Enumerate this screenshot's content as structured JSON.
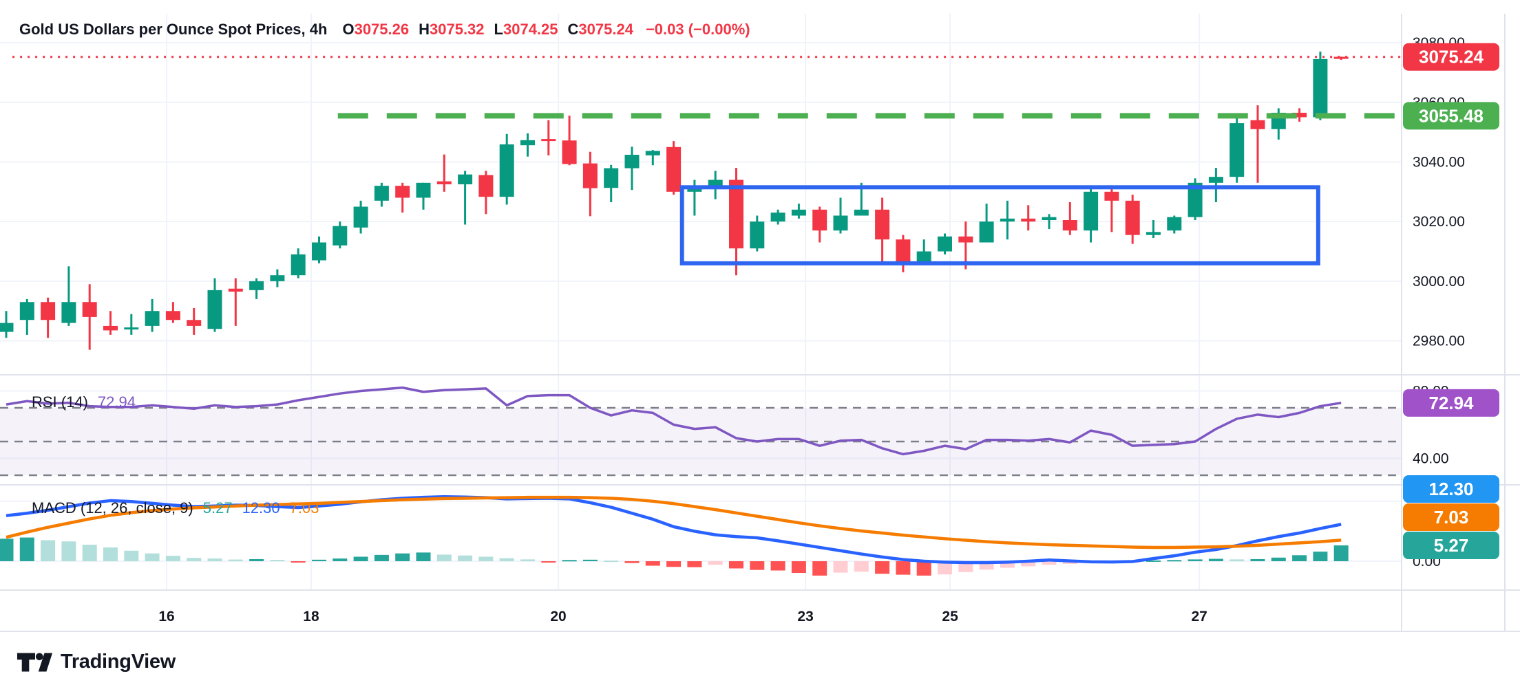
{
  "header": {
    "title": "Gold US Dollars per Ounce Spot Prices, 4h",
    "o_label": "O",
    "open": "3075.26",
    "h_label": "H",
    "high": "3075.32",
    "l_label": "L",
    "low": "3074.25",
    "c_label": "C",
    "close": "3075.24",
    "change": "−0.03 (−0.00%)"
  },
  "rsi_label": {
    "name": "RSI (14)",
    "value": "72.94"
  },
  "macd_label": {
    "name": "MACD (12, 26, close, 9)",
    "hist_value": "5.27",
    "macd_value": "12.30",
    "signal_value": "7.03"
  },
  "logo": {
    "text": "TradingView"
  },
  "colors": {
    "up": "#089981",
    "down": "#F23645",
    "hist_up": "#26A69A",
    "hist_up_weak": "#B2DFDB",
    "hist_down": "#FF5252",
    "hist_down_weak": "#FFCDD2",
    "macd_line": "#2962FF",
    "signal_line": "#F57C00",
    "rsi_line": "#7E57C2",
    "rsi_band_fill": "rgba(126,87,194,0.08)",
    "grid": "#F0F3FA",
    "separator": "#E0E3EB",
    "dash_gray": "#70737E",
    "text": "#131722",
    "tag_last": "#F23645",
    "tag_resistance": "#4CAF50",
    "tag_rsi": "#A052C8",
    "tag_macd": "#2196F3",
    "tag_signal": "#F57C00",
    "tag_hist": "#26A69A",
    "box_blue": "#2E66F0",
    "resistance_green": "#4CAF50"
  },
  "chart_data": {
    "type": "candlestick",
    "timeframe": "4h",
    "panels": [
      {
        "id": "price",
        "ylim": [
          2968.6,
          3089.7
        ],
        "yticks": [
          3080,
          3060,
          3040,
          3020,
          3000,
          2980
        ]
      },
      {
        "id": "rsi",
        "ylim": [
          24.3,
          89.6
        ],
        "yticks": [
          80,
          40
        ],
        "guides": [
          70,
          50,
          30
        ],
        "last": 72.94
      },
      {
        "id": "macd",
        "ylim": [
          -9.63,
          25.46
        ],
        "yticks": [
          0
        ],
        "guides": [
          20
        ],
        "last": {
          "macd": 12.3,
          "signal": 7.03,
          "hist": 5.27
        }
      }
    ],
    "x_labels": [
      {
        "text": "16",
        "index": 7.69
      },
      {
        "text": "18",
        "index": 14.62
      },
      {
        "text": "20",
        "index": 26.47
      },
      {
        "text": "23",
        "index": 38.32
      },
      {
        "text": "25",
        "index": 45.25
      },
      {
        "text": "27",
        "index": 57.2
      }
    ],
    "candles": [
      [
        2983,
        2990,
        2981,
        2986
      ],
      [
        2987,
        2994,
        2982,
        2993
      ],
      [
        2993,
        2994.5,
        2981,
        2987
      ],
      [
        2986,
        3005,
        2985,
        2993
      ],
      [
        2993,
        2999,
        2977,
        2988
      ],
      [
        2985,
        2990,
        2982,
        2983.5
      ],
      [
        2984,
        2989,
        2982,
        2984.5
      ],
      [
        2985,
        2994,
        2983,
        2990
      ],
      [
        2990,
        2993,
        2986,
        2987
      ],
      [
        2987,
        2991,
        2982,
        2985
      ],
      [
        2984,
        3001,
        2983,
        2997
      ],
      [
        2997.5,
        3001,
        2985,
        2996.5
      ],
      [
        2997,
        3001,
        2994,
        3000
      ],
      [
        3000,
        3004,
        2998,
        3002
      ],
      [
        3002,
        3011,
        3001,
        3009
      ],
      [
        3007,
        3015,
        3006,
        3013
      ],
      [
        3012,
        3020,
        3011,
        3018.5
      ],
      [
        3018,
        3027,
        3016,
        3025
      ],
      [
        3027,
        3033,
        3025,
        3032
      ],
      [
        3032,
        3033,
        3023,
        3028
      ],
      [
        3028,
        3033,
        3024,
        3033
      ],
      [
        3033.5,
        3042.5,
        3030,
        3032.5
      ],
      [
        3032.5,
        3037,
        3019,
        3035.8
      ],
      [
        3035.6,
        3037,
        3022.5,
        3028.3
      ],
      [
        3028.3,
        3049.4,
        3025.7,
        3045.9
      ],
      [
        3045.6,
        3049.6,
        3041.8,
        3047.3
      ],
      [
        3047.7,
        3054,
        3042.2,
        3047
      ],
      [
        3047.2,
        3055.5,
        3038.9,
        3039.3
      ],
      [
        3039.5,
        3043.4,
        3021.8,
        3031.2
      ],
      [
        3031.3,
        3039,
        3026.5,
        3037.9
      ],
      [
        3037.9,
        3045.1,
        3030.6,
        3042.4
      ],
      [
        3042.2,
        3044,
        3038.9,
        3043.7
      ],
      [
        3045,
        3047,
        3029,
        3030
      ],
      [
        3030,
        3034,
        3022,
        3031.5
      ],
      [
        3031,
        3037,
        3027.5,
        3034
      ],
      [
        3034,
        3038,
        3002,
        3011
      ],
      [
        3011,
        3022,
        3010,
        3020
      ],
      [
        3020,
        3024,
        3019,
        3023
      ],
      [
        3022,
        3026,
        3021,
        3024
      ],
      [
        3024,
        3025,
        3013,
        3017
      ],
      [
        3017,
        3028,
        3016,
        3022
      ],
      [
        3022,
        3033,
        3022,
        3024
      ],
      [
        3024,
        3028,
        3006,
        3014
      ],
      [
        3014,
        3015.5,
        3003,
        3006
      ],
      [
        3006,
        3014,
        3005.5,
        3010
      ],
      [
        3010,
        3016,
        3009,
        3015
      ],
      [
        3015,
        3020,
        3004,
        3013
      ],
      [
        3013,
        3026,
        3013,
        3020
      ],
      [
        3020,
        3027,
        3014,
        3021
      ],
      [
        3021,
        3025.5,
        3017,
        3020
      ],
      [
        3020.5,
        3022.5,
        3017.5,
        3021.5
      ],
      [
        3020.5,
        3026.5,
        3015.5,
        3017
      ],
      [
        3017,
        3031,
        3013,
        3030
      ],
      [
        3030,
        3031.5,
        3016.5,
        3027
      ],
      [
        3027,
        3029,
        3012.5,
        3015.5
      ],
      [
        3015.5,
        3020.5,
        3014.5,
        3016.5
      ],
      [
        3017,
        3022,
        3016,
        3021.5
      ],
      [
        3021.5,
        3034.5,
        3020.5,
        3033
      ],
      [
        3033,
        3038,
        3026.5,
        3035
      ],
      [
        3035,
        3055,
        3033,
        3053
      ],
      [
        3054,
        3059,
        3033,
        3051
      ],
      [
        3051,
        3058,
        3047.5,
        3056.5
      ],
      [
        3056.5,
        3058,
        3053.5,
        3055
      ],
      [
        3055,
        3077,
        3054,
        3074.5
      ],
      [
        3075.26,
        3075.32,
        3074.25,
        3075.24
      ]
    ],
    "rsi": [
      72,
      74,
      72.5,
      73,
      71,
      70.5,
      70.5,
      71.5,
      70.5,
      69.5,
      71.5,
      70.5,
      71,
      72,
      74.5,
      76.5,
      78.5,
      80,
      81,
      82,
      79.5,
      80.5,
      81,
      81.5,
      71.5,
      77,
      77.5,
      77.5,
      70,
      65.5,
      68.5,
      67,
      60,
      57.5,
      58.5,
      52,
      50,
      51.5,
      51.5,
      47.5,
      50.5,
      51,
      46,
      42.5,
      44.5,
      47.5,
      45.5,
      51,
      51,
      50.5,
      51.5,
      49.5,
      56.5,
      54,
      47.5,
      48,
      48.5,
      50,
      57.5,
      63.5,
      66,
      64.5,
      67,
      71,
      72.94
    ],
    "macd": {
      "macd": [
        15.2,
        16.0,
        17.0,
        18.2,
        19.4,
        20.2,
        19.9,
        19.3,
        18.7,
        18.2,
        18.4,
        18.7,
        18.6,
        18.2,
        17.9,
        18.4,
        19.0,
        19.8,
        20.5,
        21.0,
        21.3,
        21.5,
        21.4,
        21.2,
        20.8,
        20.9,
        21.0,
        20.8,
        19.5,
        18.0,
        16.0,
        14.0,
        11.5,
        10.0,
        8.8,
        8.2,
        7.8,
        6.8,
        5.7,
        4.6,
        3.5,
        2.4,
        1.4,
        0.55,
        0.0,
        -0.3,
        -0.45,
        -0.45,
        -0.3,
        0.0,
        0.4,
        0.1,
        -0.2,
        -0.25,
        -0.1,
        0.9,
        1.8,
        3.0,
        3.9,
        5.2,
        6.8,
        8.2,
        9.4,
        10.9,
        12.3
      ],
      "signal": [
        8.0,
        9.7,
        11.3,
        12.7,
        14.1,
        15.3,
        16.2,
        16.9,
        17.4,
        17.8,
        18.1,
        18.4,
        18.7,
        18.9,
        19.1,
        19.3,
        19.6,
        19.9,
        20.2,
        20.5,
        20.7,
        20.9,
        21.0,
        21.1,
        21.2,
        21.3,
        21.3,
        21.3,
        21.2,
        21.0,
        20.6,
        20.0,
        19.2,
        18.2,
        17.2,
        16.1,
        15.0,
        13.9,
        12.8,
        11.8,
        10.9,
        10.1,
        9.4,
        8.7,
        8.1,
        7.5,
        7.0,
        6.5,
        6.1,
        5.8,
        5.5,
        5.3,
        5.1,
        4.9,
        4.7,
        4.6,
        4.6,
        4.7,
        4.8,
        5.0,
        5.3,
        5.7,
        6.1,
        6.5,
        7.03
      ],
      "hist": [
        7.5,
        7.9,
        7.0,
        6.6,
        5.5,
        4.6,
        3.5,
        2.6,
        1.8,
        1.1,
        0.9,
        0.55,
        0.7,
        0.45,
        -0.4,
        0.5,
        0.9,
        1.5,
        2.1,
        2.6,
        2.9,
        2.2,
        1.9,
        1.5,
        1.0,
        0.6,
        -0.3,
        0.4,
        0.5,
        0.2,
        -0.6,
        -1.5,
        -1.9,
        -2.0,
        -1.2,
        -2.4,
        -2.9,
        -3.1,
        -3.9,
        -4.8,
        -3.8,
        -3.5,
        -4.2,
        -4.5,
        -4.8,
        -4.4,
        -3.6,
        -2.8,
        -2.2,
        -1.7,
        -1.2,
        -0.9,
        -0.6,
        -0.45,
        -0.35,
        0.25,
        0.4,
        0.6,
        0.8,
        0.6,
        0.7,
        1.2,
        2.0,
        3.2,
        5.27
      ]
    },
    "overlays": {
      "last_price_line": {
        "value": 3075.24,
        "style": "dotted",
        "from_index": 0.3
      },
      "resistance_line": {
        "value": 3055.48,
        "style": "dashed",
        "from_index": 15.9
      },
      "consolidation_box": {
        "from_index": 32.4,
        "to_index": 62.9,
        "top": 3031.5,
        "bottom": 3006
      }
    },
    "axis_tags": [
      {
        "id": "last-price",
        "text": "3075.24",
        "panel": "price",
        "value": 3075.24,
        "color_key": "tag_last"
      },
      {
        "id": "resistance",
        "text": "3055.48",
        "panel": "price",
        "value": 3055.48,
        "color_key": "tag_resistance"
      },
      {
        "id": "rsi-value",
        "text": "72.94",
        "panel": "rsi",
        "value": 72.94,
        "color_key": "tag_rsi"
      },
      {
        "id": "macd-value",
        "text": "12.30",
        "panel": "macd_stack",
        "stack_pos": 2,
        "color_key": "tag_macd"
      },
      {
        "id": "signal-value",
        "text": "7.03",
        "panel": "macd_stack",
        "stack_pos": 1,
        "color_key": "tag_signal"
      },
      {
        "id": "hist-value",
        "text": "5.27",
        "panel": "macd_stack",
        "stack_pos": 0,
        "color_key": "tag_hist"
      }
    ]
  }
}
